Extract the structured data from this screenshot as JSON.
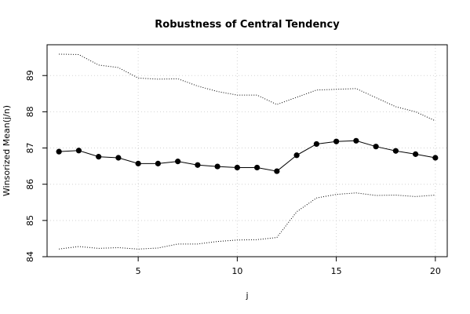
{
  "chart_data": {
    "type": "line",
    "title": "Robustness of Central Tendency",
    "xlabel": "j",
    "ylabel": "Winsorized Mean(j/n)",
    "xlim": [
      0.4,
      20.6
    ],
    "ylim": [
      84.0,
      89.85
    ],
    "x_ticks": [
      5,
      10,
      15,
      20
    ],
    "y_ticks": [
      84,
      85,
      86,
      87,
      88,
      89
    ],
    "grid": true,
    "x": [
      1,
      2,
      3,
      4,
      5,
      6,
      7,
      8,
      9,
      10,
      11,
      12,
      13,
      14,
      15,
      16,
      17,
      18,
      19,
      20
    ],
    "series": [
      {
        "values": [
          86.9,
          86.93,
          86.76,
          86.73,
          86.57,
          86.57,
          86.63,
          86.53,
          86.49,
          86.46,
          86.46,
          86.36,
          86.8,
          87.11,
          87.18,
          87.2,
          87.04,
          86.92,
          86.83,
          86.73
        ],
        "style": "line-points",
        "color": "#000000"
      },
      {
        "values": [
          89.59,
          89.58,
          89.29,
          89.22,
          88.93,
          88.9,
          88.91,
          88.71,
          88.56,
          88.46,
          88.46,
          88.2,
          88.4,
          88.6,
          88.62,
          88.64,
          88.39,
          88.14,
          88.0,
          87.75
        ],
        "style": "dotted",
        "color": "#000000"
      },
      {
        "values": [
          84.21,
          84.28,
          84.23,
          84.25,
          84.21,
          84.24,
          84.35,
          84.35,
          84.42,
          84.46,
          84.47,
          84.53,
          85.24,
          85.62,
          85.72,
          85.76,
          85.69,
          85.7,
          85.66,
          85.7
        ],
        "style": "dotted",
        "color": "#000000"
      }
    ]
  }
}
